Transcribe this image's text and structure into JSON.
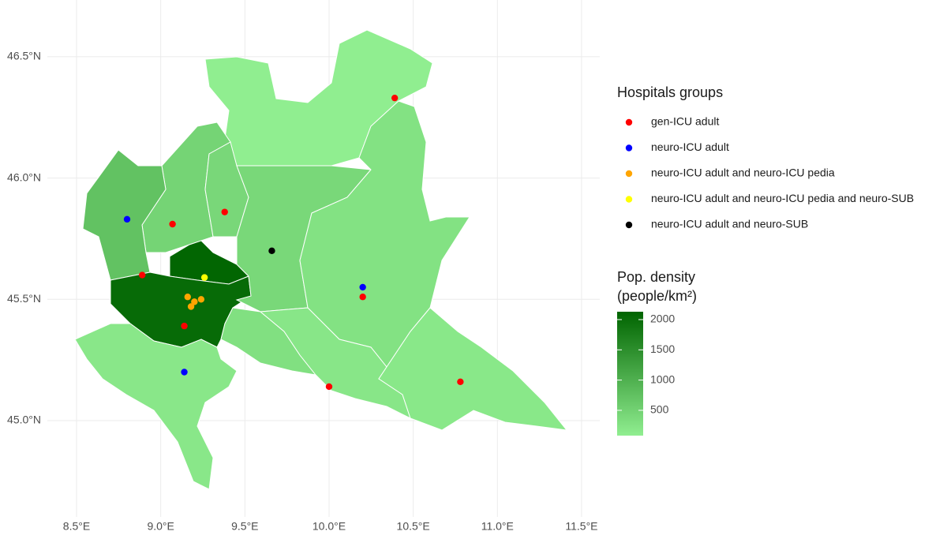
{
  "chart_data": {
    "type": "scatter",
    "xlim": [
      8.3265,
      11.608
    ],
    "ylim": [
      44.603,
      46.734
    ],
    "xticks": [
      {
        "value": 8.5,
        "label": "8.5°E"
      },
      {
        "value": 9.0,
        "label": "9.0°E"
      },
      {
        "value": 9.5,
        "label": "9.5°E"
      },
      {
        "value": 10.0,
        "label": "10.0°E"
      },
      {
        "value": 10.5,
        "label": "10.5°E"
      },
      {
        "value": 11.0,
        "label": "11.0°E"
      },
      {
        "value": 11.5,
        "label": "11.5°E"
      }
    ],
    "yticks": [
      {
        "value": 45.0,
        "label": "45.0°N"
      },
      {
        "value": 45.5,
        "label": "45.5°N"
      },
      {
        "value": 46.0,
        "label": "46.0°N"
      },
      {
        "value": 46.5,
        "label": "46.5°N"
      }
    ],
    "grid": true,
    "legend_title": "Hospitals groups",
    "series": [
      {
        "name": "gen-ICU adult",
        "color": "#ff0000",
        "x": [
          10.39,
          9.38,
          9.07,
          8.89,
          9.14,
          10.2,
          10.0,
          10.78
        ],
        "y": [
          46.33,
          45.86,
          45.81,
          45.6,
          45.39,
          45.51,
          45.14,
          45.16
        ]
      },
      {
        "name": "neuro-ICU adult",
        "color": "#0000ff",
        "x": [
          8.8,
          10.2,
          9.14
        ],
        "y": [
          45.83,
          45.55,
          45.2
        ]
      },
      {
        "name": "neuro-ICU adult and neuro-ICU pedia",
        "color": "#ffa500",
        "x": [
          9.16,
          9.2,
          9.24,
          9.18
        ],
        "y": [
          45.51,
          45.49,
          45.5,
          45.47
        ]
      },
      {
        "name": "neuro-ICU adult and neuro-ICU pedia and neuro-SUB",
        "color": "#ffff00",
        "x": [
          9.26
        ],
        "y": [
          45.59
        ]
      },
      {
        "name": "neuro-ICU adult and neuro-SUB",
        "color": "#000000",
        "x": [
          9.66
        ],
        "y": [
          45.7
        ]
      }
    ],
    "fill_title": [
      "Pop. density",
      "(people/km²)"
    ],
    "fill_colors": [
      "#90ee90",
      "#006400"
    ],
    "fill_lim": [
      82,
      2130
    ],
    "fill_ticks": [
      500,
      1000,
      1500,
      2000
    ],
    "densities": [
      56,
      469,
      740,
      416,
      2100,
      2030,
      403,
      264,
      295,
      200,
      175,
      183
    ]
  }
}
